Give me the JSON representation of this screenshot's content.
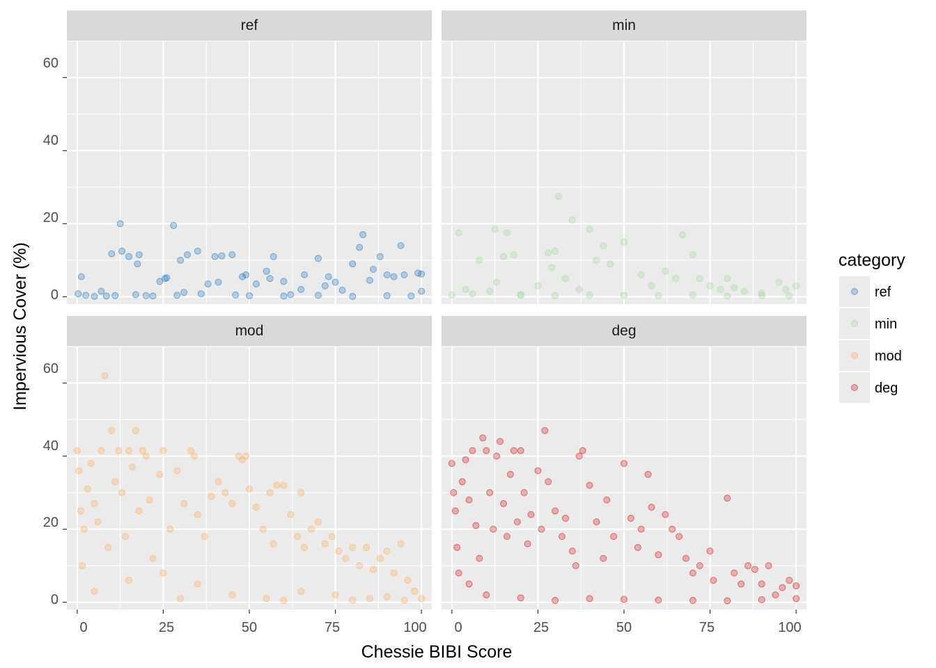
{
  "chart_data": {
    "type": "scatter",
    "facet_labels": [
      "ref",
      "min",
      "mod",
      "deg"
    ],
    "xlabel": "Chessie BIBI Score",
    "ylabel": "Impervious Cover (%)",
    "xlim": [
      -3,
      103
    ],
    "ylim": [
      -2,
      70
    ],
    "x_ticks": [
      "0",
      "25",
      "50",
      "75",
      "100"
    ],
    "x_tick_values": [
      0,
      25,
      50,
      75,
      100
    ],
    "y_ticks": [
      "0",
      "20",
      "40",
      "60"
    ],
    "y_tick_values": [
      0,
      20,
      40,
      60
    ],
    "grid": true,
    "legend": {
      "title": "category",
      "position": "right",
      "entries": [
        "ref",
        "min",
        "mod",
        "deg"
      ]
    },
    "colors": {
      "ref": "#2b7bba",
      "min": "#a6dba0",
      "mod": "#fdae61",
      "deg": "#d7191c"
    },
    "series": [
      {
        "name": "ref",
        "points": [
          [
            0.3,
            0.8
          ],
          [
            1.2,
            5.5
          ],
          [
            2.5,
            0.4
          ],
          [
            5,
            0.1
          ],
          [
            7,
            1.5
          ],
          [
            8.5,
            0.2
          ],
          [
            10,
            11.8
          ],
          [
            11,
            0.3
          ],
          [
            12.5,
            20
          ],
          [
            13,
            12.5
          ],
          [
            15,
            11
          ],
          [
            17,
            0.6
          ],
          [
            17.5,
            9
          ],
          [
            18,
            11.5
          ],
          [
            20,
            0.3
          ],
          [
            22,
            0.2
          ],
          [
            24,
            4.2
          ],
          [
            25.5,
            5
          ],
          [
            26,
            5.2
          ],
          [
            28,
            19.5
          ],
          [
            29,
            0.4
          ],
          [
            30,
            10
          ],
          [
            31,
            1.2
          ],
          [
            32,
            11.5
          ],
          [
            35,
            12.5
          ],
          [
            36,
            0.8
          ],
          [
            38,
            3.5
          ],
          [
            40,
            11
          ],
          [
            41,
            4
          ],
          [
            42,
            11.2
          ],
          [
            45,
            11.5
          ],
          [
            46,
            0.5
          ],
          [
            48,
            5.5
          ],
          [
            49,
            6
          ],
          [
            52,
            3.5
          ],
          [
            55,
            7
          ],
          [
            56,
            5
          ],
          [
            57,
            11
          ],
          [
            60,
            4.2
          ],
          [
            62,
            0.6
          ],
          [
            66,
            6
          ],
          [
            70,
            10.5
          ],
          [
            73,
            5.5
          ],
          [
            75,
            4
          ],
          [
            80,
            9
          ],
          [
            82,
            13.5
          ],
          [
            83,
            17
          ],
          [
            85,
            4.5
          ],
          [
            86,
            7.5
          ],
          [
            88,
            11
          ],
          [
            90,
            6
          ],
          [
            92,
            5.5
          ],
          [
            94,
            14
          ],
          [
            95,
            6
          ],
          [
            99,
            6.5
          ],
          [
            100,
            6.2
          ],
          [
            100,
            1.5
          ],
          [
            50,
            0.3
          ],
          [
            60,
            0.2
          ],
          [
            70,
            0.4
          ],
          [
            80,
            0.1
          ],
          [
            90,
            0.3
          ],
          [
            97,
            0.2
          ],
          [
            65,
            2
          ],
          [
            72,
            3
          ],
          [
            77,
            1.8
          ]
        ]
      },
      {
        "name": "min",
        "points": [
          [
            0,
            0.5
          ],
          [
            2,
            17.5
          ],
          [
            4,
            2
          ],
          [
            6,
            0.8
          ],
          [
            8,
            10
          ],
          [
            11,
            1.5
          ],
          [
            12.5,
            18.5
          ],
          [
            13,
            4
          ],
          [
            15,
            11
          ],
          [
            16,
            17.5
          ],
          [
            18,
            11.5
          ],
          [
            20,
            0.6
          ],
          [
            25,
            3
          ],
          [
            28,
            12
          ],
          [
            29,
            8
          ],
          [
            30,
            12.5
          ],
          [
            31,
            27.5
          ],
          [
            33,
            5
          ],
          [
            35,
            21
          ],
          [
            37,
            2
          ],
          [
            40,
            18.5
          ],
          [
            42,
            10
          ],
          [
            44,
            14
          ],
          [
            46,
            9
          ],
          [
            50,
            15
          ],
          [
            55,
            6
          ],
          [
            58,
            3
          ],
          [
            62,
            7
          ],
          [
            65,
            5
          ],
          [
            67,
            17
          ],
          [
            70,
            11.5
          ],
          [
            72,
            5
          ],
          [
            75,
            3
          ],
          [
            78,
            2
          ],
          [
            80,
            5
          ],
          [
            82,
            2.5
          ],
          [
            85,
            1.5
          ],
          [
            90,
            1
          ],
          [
            95,
            4
          ],
          [
            97,
            2
          ],
          [
            100,
            3
          ],
          [
            50,
            0.4
          ],
          [
            60,
            0.3
          ],
          [
            70,
            0.5
          ],
          [
            80,
            0.2
          ],
          [
            90,
            0.3
          ],
          [
            98,
            0.2
          ],
          [
            40,
            0.5
          ],
          [
            30,
            0.3
          ],
          [
            20,
            0.4
          ]
        ]
      },
      {
        "name": "mod",
        "points": [
          [
            0,
            41.5
          ],
          [
            0.5,
            36
          ],
          [
            1,
            25
          ],
          [
            1.5,
            10
          ],
          [
            2,
            20
          ],
          [
            3,
            31
          ],
          [
            4,
            38
          ],
          [
            5,
            27
          ],
          [
            6,
            22
          ],
          [
            7,
            41.5
          ],
          [
            8,
            62
          ],
          [
            9,
            15
          ],
          [
            10,
            47
          ],
          [
            11,
            33
          ],
          [
            12,
            41.5
          ],
          [
            13,
            30
          ],
          [
            14,
            18
          ],
          [
            15,
            41.5
          ],
          [
            16,
            37
          ],
          [
            17,
            47
          ],
          [
            18,
            25
          ],
          [
            19,
            41.5
          ],
          [
            20,
            40
          ],
          [
            21,
            28
          ],
          [
            22,
            12
          ],
          [
            24,
            35
          ],
          [
            25,
            41.5
          ],
          [
            27,
            20
          ],
          [
            29,
            36
          ],
          [
            31,
            27
          ],
          [
            33,
            41.5
          ],
          [
            34,
            40
          ],
          [
            35,
            24
          ],
          [
            37,
            18
          ],
          [
            39,
            29
          ],
          [
            41,
            33
          ],
          [
            43,
            30
          ],
          [
            45,
            27
          ],
          [
            47,
            40
          ],
          [
            48,
            39
          ],
          [
            49,
            40
          ],
          [
            50,
            31
          ],
          [
            52,
            26
          ],
          [
            54,
            20
          ],
          [
            56,
            30
          ],
          [
            57,
            16
          ],
          [
            58,
            32
          ],
          [
            60,
            32
          ],
          [
            62,
            24
          ],
          [
            64,
            18
          ],
          [
            65,
            30
          ],
          [
            66,
            15
          ],
          [
            68,
            20
          ],
          [
            70,
            22
          ],
          [
            72,
            16
          ],
          [
            74,
            18
          ],
          [
            76,
            14
          ],
          [
            78,
            12
          ],
          [
            80,
            15
          ],
          [
            82,
            10
          ],
          [
            84,
            15
          ],
          [
            86,
            9
          ],
          [
            88,
            12
          ],
          [
            90,
            14
          ],
          [
            92,
            8
          ],
          [
            94,
            16
          ],
          [
            96,
            6
          ],
          [
            98,
            3
          ],
          [
            100,
            1
          ],
          [
            45,
            2
          ],
          [
            55,
            1
          ],
          [
            65,
            3
          ],
          [
            75,
            2
          ],
          [
            85,
            1
          ],
          [
            95,
            0.5
          ],
          [
            35,
            5
          ],
          [
            25,
            8
          ],
          [
            15,
            6
          ],
          [
            5,
            3
          ],
          [
            30,
            1
          ],
          [
            60,
            0.5
          ],
          [
            80,
            0.6
          ],
          [
            90,
            1.5
          ]
        ]
      },
      {
        "name": "deg",
        "points": [
          [
            0,
            38
          ],
          [
            0.5,
            30
          ],
          [
            1,
            25
          ],
          [
            1.5,
            15
          ],
          [
            2,
            8
          ],
          [
            3,
            33
          ],
          [
            4,
            39
          ],
          [
            5,
            28
          ],
          [
            6,
            41.5
          ],
          [
            7,
            21
          ],
          [
            8,
            12
          ],
          [
            9,
            45
          ],
          [
            10,
            41.5
          ],
          [
            11,
            30
          ],
          [
            12,
            20
          ],
          [
            13,
            40
          ],
          [
            14,
            44
          ],
          [
            15,
            27
          ],
          [
            16,
            18
          ],
          [
            17,
            35
          ],
          [
            18,
            41.5
          ],
          [
            19,
            22
          ],
          [
            20,
            41.5
          ],
          [
            21,
            30
          ],
          [
            22,
            16
          ],
          [
            23,
            24
          ],
          [
            25,
            36
          ],
          [
            26,
            20
          ],
          [
            27,
            47
          ],
          [
            28,
            33
          ],
          [
            30,
            25
          ],
          [
            32,
            18
          ],
          [
            33,
            23
          ],
          [
            35,
            14
          ],
          [
            36,
            10
          ],
          [
            37,
            40
          ],
          [
            38,
            41.5
          ],
          [
            40,
            32
          ],
          [
            42,
            22
          ],
          [
            44,
            12
          ],
          [
            45,
            28
          ],
          [
            47,
            18
          ],
          [
            50,
            38
          ],
          [
            52,
            23
          ],
          [
            54,
            15
          ],
          [
            55,
            20
          ],
          [
            57,
            35
          ],
          [
            58,
            26
          ],
          [
            60,
            13
          ],
          [
            62,
            24
          ],
          [
            64,
            20
          ],
          [
            66,
            18
          ],
          [
            68,
            12
          ],
          [
            70,
            8
          ],
          [
            72,
            10
          ],
          [
            75,
            14
          ],
          [
            76,
            6
          ],
          [
            80,
            28.5
          ],
          [
            82,
            8
          ],
          [
            84,
            5
          ],
          [
            86,
            10
          ],
          [
            88,
            9
          ],
          [
            90,
            5
          ],
          [
            92,
            10
          ],
          [
            94,
            2
          ],
          [
            96,
            4
          ],
          [
            98,
            6
          ],
          [
            100,
            4.5
          ],
          [
            100,
            1
          ],
          [
            30,
            0.5
          ],
          [
            40,
            1
          ],
          [
            50,
            0.8
          ],
          [
            60,
            0.6
          ],
          [
            70,
            0.5
          ],
          [
            80,
            0.4
          ],
          [
            90,
            0.7
          ],
          [
            20,
            1.2
          ],
          [
            10,
            2
          ],
          [
            5,
            5
          ]
        ]
      }
    ]
  }
}
